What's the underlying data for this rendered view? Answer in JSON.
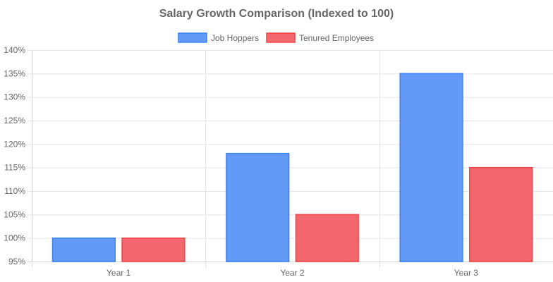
{
  "chart_data": {
    "type": "bar",
    "title": "Salary Growth Comparison (Indexed to 100)",
    "categories": [
      "Year 1",
      "Year 2",
      "Year 3"
    ],
    "series": [
      {
        "name": "Job Hoppers",
        "values": [
          100,
          118,
          135
        ],
        "fill_color": "#6399f7",
        "border_color": "#3b82f6"
      },
      {
        "name": "Tenured Employees",
        "values": [
          100,
          105,
          115
        ],
        "fill_color": "#f2686e",
        "border_color": "#ef4444"
      }
    ],
    "ylim": [
      95,
      140
    ],
    "yticks": [
      95,
      100,
      105,
      110,
      115,
      120,
      125,
      130,
      135,
      140
    ],
    "ytick_labels": [
      "95%",
      "100%",
      "105%",
      "110%",
      "115%",
      "120%",
      "125%",
      "130%",
      "135%",
      "140%"
    ],
    "xlabel": "",
    "ylabel": "",
    "legend_position": "top",
    "grid": true
  }
}
